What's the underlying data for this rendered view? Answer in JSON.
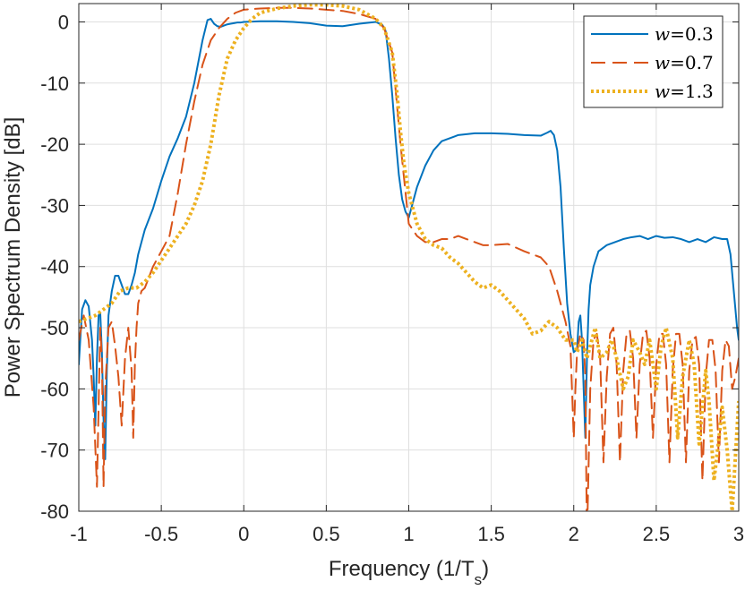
{
  "chart_data": {
    "type": "line",
    "title": "",
    "xlabel": "Frequency (1/T",
    "xlabel_sub": "s",
    "xlabel_close": ")",
    "ylabel": "Power Spectrum Density [dB]",
    "xlim": [
      -1,
      3
    ],
    "ylim": [
      -80,
      3
    ],
    "xticks": [
      -1,
      -0.5,
      0,
      0.5,
      1,
      1.5,
      2,
      2.5,
      3
    ],
    "xtick_labels": [
      "-1",
      "-0.5",
      "0",
      "0.5",
      "1",
      "1.5",
      "2",
      "2.5",
      "3"
    ],
    "yticks": [
      -80,
      -70,
      -60,
      -50,
      -40,
      -30,
      -20,
      -10,
      0
    ],
    "ytick_labels": [
      "-80",
      "-70",
      "-60",
      "-50",
      "-40",
      "-30",
      "-20",
      "-10",
      "0"
    ],
    "grid": true,
    "legend_position": "top-right",
    "series": [
      {
        "name": "w=0.3",
        "legend_var": "w",
        "legend_value": "=0.3",
        "color": "#0072BD",
        "style": "solid",
        "x": [
          -1.0,
          -0.98,
          -0.96,
          -0.94,
          -0.92,
          -0.91,
          -0.9,
          -0.89,
          -0.88,
          -0.87,
          -0.86,
          -0.85,
          -0.84,
          -0.83,
          -0.82,
          -0.8,
          -0.78,
          -0.76,
          -0.74,
          -0.72,
          -0.7,
          -0.68,
          -0.66,
          -0.64,
          -0.62,
          -0.6,
          -0.55,
          -0.5,
          -0.45,
          -0.4,
          -0.35,
          -0.3,
          -0.25,
          -0.22,
          -0.2,
          -0.18,
          -0.16,
          -0.14,
          -0.12,
          -0.1,
          -0.08,
          -0.06,
          -0.04,
          -0.02,
          0.0,
          0.1,
          0.2,
          0.3,
          0.4,
          0.5,
          0.6,
          0.7,
          0.8,
          0.84,
          0.86,
          0.88,
          0.9,
          0.92,
          0.94,
          0.96,
          0.98,
          1.0,
          1.02,
          1.05,
          1.1,
          1.15,
          1.2,
          1.3,
          1.4,
          1.5,
          1.6,
          1.7,
          1.8,
          1.84,
          1.86,
          1.88,
          1.9,
          1.92,
          1.94,
          1.96,
          1.98,
          2.0,
          2.02,
          2.03,
          2.04,
          2.05,
          2.06,
          2.07,
          2.08,
          2.09,
          2.1,
          2.12,
          2.15,
          2.2,
          2.25,
          2.3,
          2.35,
          2.4,
          2.45,
          2.5,
          2.55,
          2.6,
          2.65,
          2.7,
          2.75,
          2.8,
          2.85,
          2.9,
          2.93,
          2.95,
          2.97,
          2.99,
          3.0
        ],
        "y": [
          -56,
          -47,
          -45.5,
          -46.5,
          -52,
          -58,
          -66,
          -55,
          -48,
          -47.5,
          -54,
          -65,
          -71.5,
          -57,
          -48,
          -44,
          -41.5,
          -41.5,
          -43,
          -44.5,
          -44.5,
          -43,
          -41,
          -38,
          -36,
          -34,
          -30.5,
          -26,
          -22,
          -19,
          -15.5,
          -10,
          -3,
          0.3,
          0.5,
          -0.3,
          -0.7,
          -0.8,
          -0.6,
          -0.4,
          -0.3,
          -0.2,
          -0.1,
          -0.1,
          0.0,
          0.1,
          0.1,
          0.0,
          -0.2,
          -0.6,
          -0.7,
          -0.3,
          0.0,
          -0.5,
          -1.5,
          -6,
          -12,
          -19,
          -25,
          -29,
          -31,
          -32,
          -30,
          -27,
          -23.5,
          -21,
          -19.5,
          -18.5,
          -18.2,
          -18.2,
          -18.3,
          -18.5,
          -18.6,
          -18.1,
          -17.8,
          -18.5,
          -21,
          -27,
          -37,
          -46,
          -51,
          -54,
          -53.5,
          -49,
          -48,
          -52,
          -60,
          -68,
          -55,
          -47,
          -43,
          -40,
          -37.5,
          -36.5,
          -36,
          -35.5,
          -35.2,
          -35,
          -35.5,
          -35,
          -35.3,
          -35.2,
          -35.5,
          -36,
          -35.5,
          -36,
          -35.2,
          -35.5,
          -35.5,
          -38,
          -44,
          -50,
          -52
        ]
      },
      {
        "name": "w=0.7",
        "legend_var": "w",
        "legend_value": "=0.7",
        "color": "#D95319",
        "style": "dashed",
        "x": [
          -1.0,
          -0.97,
          -0.94,
          -0.91,
          -0.89,
          -0.88,
          -0.87,
          -0.86,
          -0.85,
          -0.84,
          -0.82,
          -0.8,
          -0.78,
          -0.76,
          -0.74,
          -0.72,
          -0.7,
          -0.68,
          -0.67,
          -0.66,
          -0.65,
          -0.64,
          -0.62,
          -0.6,
          -0.55,
          -0.5,
          -0.45,
          -0.4,
          -0.35,
          -0.3,
          -0.25,
          -0.2,
          -0.15,
          -0.1,
          -0.05,
          0.0,
          0.1,
          0.2,
          0.3,
          0.4,
          0.5,
          0.6,
          0.7,
          0.8,
          0.85,
          0.9,
          0.95,
          1.0,
          1.05,
          1.1,
          1.15,
          1.2,
          1.25,
          1.3,
          1.35,
          1.4,
          1.45,
          1.5,
          1.6,
          1.7,
          1.8,
          1.85,
          1.9,
          1.95,
          1.98,
          2.0,
          2.01,
          2.02,
          2.04,
          2.06,
          2.07,
          2.08,
          2.1,
          2.12,
          2.14,
          2.16,
          2.18,
          2.2,
          2.22,
          2.24,
          2.26,
          2.28,
          2.3,
          2.32,
          2.34,
          2.36,
          2.38,
          2.4,
          2.42,
          2.44,
          2.46,
          2.48,
          2.5,
          2.52,
          2.54,
          2.56,
          2.58,
          2.6,
          2.62,
          2.64,
          2.66,
          2.68,
          2.7,
          2.72,
          2.74,
          2.76,
          2.78,
          2.8,
          2.82,
          2.84,
          2.86,
          2.88,
          2.9,
          2.92,
          2.94,
          2.96,
          2.98,
          3.0
        ],
        "y": [
          -52,
          -48,
          -52,
          -63,
          -76,
          -63,
          -50,
          -55,
          -76,
          -60,
          -50,
          -49,
          -53,
          -58,
          -66,
          -55,
          -50,
          -57,
          -68,
          -56,
          -50,
          -46,
          -44,
          -43.5,
          -40,
          -37.5,
          -35,
          -28,
          -20,
          -13,
          -7,
          -3,
          -1,
          0.5,
          1.5,
          2.0,
          2.2,
          2.3,
          2.3,
          2.2,
          2.0,
          1.8,
          1.3,
          0.5,
          -1,
          -5,
          -20,
          -33,
          -35,
          -36,
          -36,
          -35.5,
          -35.5,
          -35,
          -35.5,
          -36,
          -36.5,
          -36.5,
          -36.3,
          -37.5,
          -38.5,
          -40,
          -44,
          -49,
          -53,
          -68,
          -60,
          -54,
          -51,
          -52,
          -58,
          -85,
          -60,
          -52,
          -51,
          -55,
          -72,
          -58,
          -51,
          -50,
          -56,
          -72,
          -57,
          -51,
          -50.5,
          -55,
          -68,
          -56,
          -51,
          -50.5,
          -55,
          -68,
          -56,
          -51,
          -51,
          -56,
          -72,
          -57,
          -51,
          -51,
          -56,
          -72,
          -57,
          -52,
          -51.5,
          -56,
          -75,
          -58,
          -52,
          -52,
          -57,
          -72,
          -57,
          -52,
          -53,
          -60,
          -58,
          -55
        ]
      },
      {
        "name": "w=1.3",
        "legend_var": "w",
        "legend_value": "=1.3",
        "color": "#EDB120",
        "style": "dotted",
        "x": [
          -1.0,
          -0.95,
          -0.9,
          -0.85,
          -0.8,
          -0.75,
          -0.7,
          -0.65,
          -0.6,
          -0.55,
          -0.5,
          -0.45,
          -0.4,
          -0.35,
          -0.3,
          -0.25,
          -0.2,
          -0.15,
          -0.1,
          -0.05,
          0.0,
          0.05,
          0.1,
          0.2,
          0.3,
          0.4,
          0.5,
          0.6,
          0.7,
          0.8,
          0.85,
          0.9,
          0.93,
          0.95,
          0.97,
          1.0,
          1.05,
          1.1,
          1.15,
          1.2,
          1.25,
          1.3,
          1.35,
          1.4,
          1.45,
          1.5,
          1.55,
          1.6,
          1.65,
          1.7,
          1.75,
          1.8,
          1.85,
          1.9,
          1.95,
          2.0,
          2.02,
          2.05,
          2.08,
          2.1,
          2.13,
          2.16,
          2.2,
          2.23,
          2.26,
          2.3,
          2.33,
          2.36,
          2.4,
          2.43,
          2.46,
          2.5,
          2.53,
          2.56,
          2.6,
          2.63,
          2.66,
          2.7,
          2.73,
          2.76,
          2.8,
          2.82,
          2.85,
          2.88,
          2.9,
          2.93,
          2.96,
          3.0
        ],
        "y": [
          -49,
          -48.5,
          -48,
          -47,
          -46,
          -44,
          -43.5,
          -43.5,
          -42.5,
          -41,
          -39,
          -37,
          -35,
          -33,
          -30,
          -26,
          -20,
          -12,
          -6,
          -3,
          -1,
          0.5,
          1.5,
          2.2,
          2.6,
          2.8,
          2.8,
          2.6,
          2.0,
          0.5,
          -1,
          -5,
          -12,
          -18,
          -23,
          -28,
          -33,
          -35.5,
          -36.5,
          -37,
          -38.5,
          -39.5,
          -41,
          -42.5,
          -43.5,
          -43,
          -44,
          -45.5,
          -47,
          -48.5,
          -51,
          -50.5,
          -49,
          -50,
          -52,
          -52,
          -54,
          -52,
          -55,
          -53,
          -50,
          -55,
          -54,
          -52,
          -55,
          -60,
          -58,
          -52,
          -54,
          -56,
          -52,
          -60,
          -53,
          -50,
          -55,
          -68,
          -58,
          -52,
          -56,
          -69,
          -57,
          -62,
          -75,
          -68,
          -63,
          -70,
          -80,
          -62
        ]
      }
    ]
  }
}
